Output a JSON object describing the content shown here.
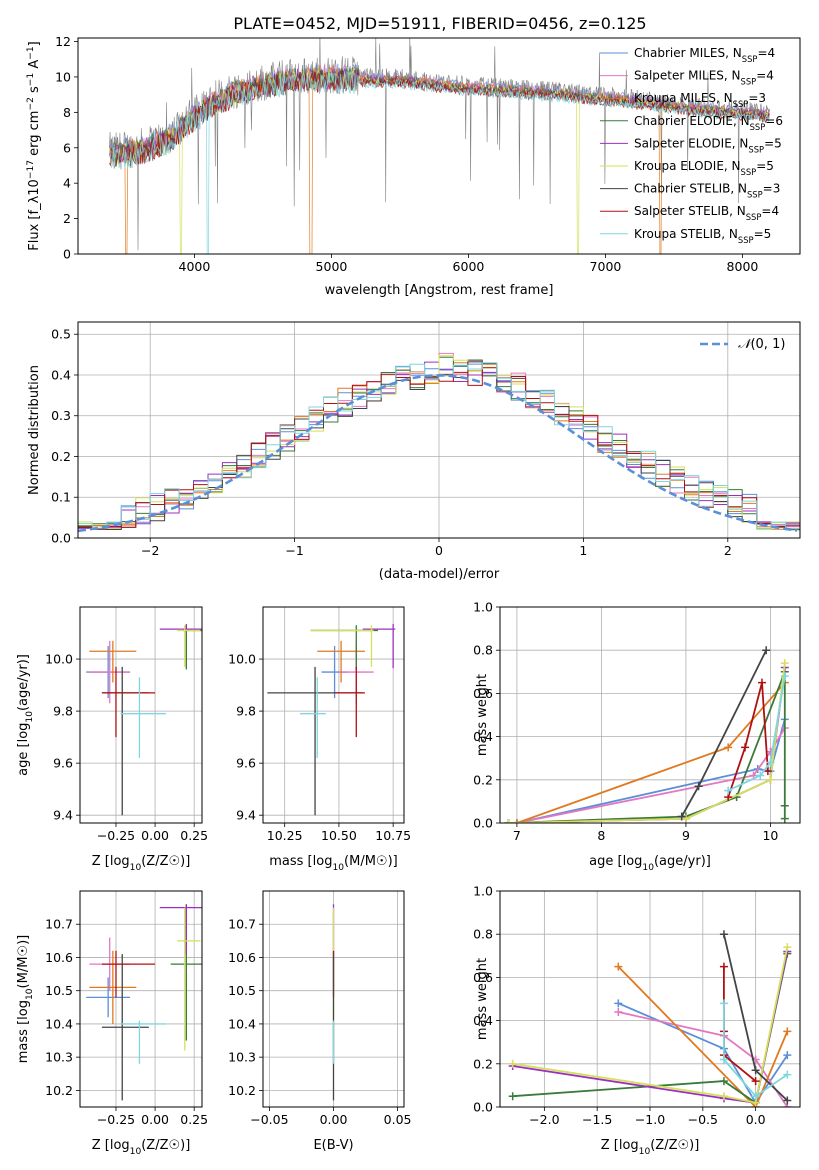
{
  "title": "PLATE=0452, MJD=51911, FIBERID=0456, z=0.125",
  "colors": {
    "chabrier_miles": "#5b8fd8",
    "salpeter_miles": "#e377c2",
    "kroupa_miles": "#e07a20",
    "chabrier_elodie": "#3a7a3a",
    "salpeter_elodie": "#9b30c0",
    "kroupa_elodie": "#d4e05a",
    "chabrier_stelib": "#444444",
    "salpeter_stelib": "#b01010",
    "kroupa_stelib": "#7fd6e0",
    "data": "#808080",
    "grid": "#b0b0b0"
  },
  "chart_data": [
    {
      "id": "spectrum",
      "type": "line",
      "xlabel": "wavelength [Angstrom, rest frame]",
      "ylabel": "Flux [f_λ10^-17 erg cm^-2 s^-1 A^-1]",
      "xlim": [
        3150,
        8420
      ],
      "ylim": [
        0,
        12.2
      ],
      "xticks": [
        "4000",
        "5000",
        "6000",
        "7000",
        "8000"
      ],
      "yticks": [
        "0",
        "2",
        "4",
        "6",
        "8",
        "10",
        "12"
      ],
      "legend": [
        "Chabrier MILES, N_SSP=4",
        "Salpeter MILES, N_SSP=4",
        "Kroupa MILES, N_SSP=3",
        "Chabrier ELODIE, N_SSP=6",
        "Salpeter ELODIE, N_SSP=5",
        "Kroupa ELODIE, N_SSP=5",
        "Chabrier STELIB, N_SSP=3",
        "Salpeter STELIB, N_SSP=4",
        "Kroupa STELIB, N_SSP=5"
      ],
      "legend_placement": "upper-right",
      "grid": false,
      "continuum": {
        "x": [
          3400,
          3600,
          3800,
          3950,
          4100,
          4300,
          4500,
          4700,
          4900,
          5100,
          5300,
          5500,
          5700,
          5900,
          6100,
          6300,
          6500,
          6700,
          6900,
          7100,
          7300,
          7500,
          7700,
          7900,
          8100,
          8200
        ],
        "y": [
          5.8,
          6.0,
          6.6,
          7.6,
          8.5,
          9.3,
          9.7,
          10.0,
          10.1,
          10.1,
          10.0,
          10.0,
          9.8,
          9.6,
          9.5,
          9.4,
          9.3,
          9.2,
          9.0,
          8.9,
          8.7,
          8.5,
          8.3,
          8.2,
          8.1,
          8.0
        ]
      },
      "model_gaps": [
        {
          "series": "Kroupa MILES",
          "x": [
            3500,
            4850,
            7400
          ]
        },
        {
          "series": "Kroupa ELODIE",
          "x": [
            3900,
            6800
          ]
        },
        {
          "series": "Kroupa STELIB",
          "x": [
            4100
          ]
        }
      ]
    },
    {
      "id": "residuals",
      "type": "line",
      "subtype": "step-histogram",
      "xlabel": "(data-model)/error",
      "ylabel": "Normed distribution",
      "xlim": [
        -2.5,
        2.5
      ],
      "ylim": [
        0,
        0.53
      ],
      "xticks": [
        "−2",
        "−1",
        "0",
        "1",
        "2"
      ],
      "yticks": [
        "0.0",
        "0.1",
        "0.2",
        "0.3",
        "0.4",
        "0.5"
      ],
      "grid": true,
      "reference": {
        "name": "N(0,1)",
        "style": "dashed",
        "mean": 0,
        "sigma": 1
      },
      "legend_placement": "upper-right"
    },
    {
      "id": "age_vs_Z",
      "type": "scatter",
      "subtype": "errorbar",
      "xlabel": "Z [log10(Z/Z☉)]",
      "ylabel": "age [log10(age/yr)]",
      "xlim": [
        -0.48,
        0.3
      ],
      "ylim": [
        9.37,
        10.2
      ],
      "xticks": [
        "−0.25",
        "0.00",
        "0.25"
      ],
      "yticks": [
        "9.4",
        "9.6",
        "9.8",
        "10.0"
      ],
      "grid": true,
      "points": [
        {
          "series": "Chabrier MILES",
          "x": -0.3,
          "xerr": [
            0.14,
            0.14
          ],
          "y": 9.95,
          "yerr": [
            0.1,
            0.1
          ]
        },
        {
          "series": "Salpeter MILES",
          "x": -0.29,
          "xerr": [
            0.13,
            0.13
          ],
          "y": 9.95,
          "yerr": [
            0.12,
            0.12
          ]
        },
        {
          "series": "Kroupa MILES",
          "x": -0.27,
          "xerr": [
            0.15,
            0.15
          ],
          "y": 10.03,
          "yerr": [
            0.12,
            0.04
          ]
        },
        {
          "series": "Chabrier ELODIE",
          "x": 0.2,
          "xerr": [
            0.02,
            0.1
          ],
          "y": 10.11,
          "yerr": [
            0.15,
            0.02
          ]
        },
        {
          "series": "Salpeter ELODIE",
          "x": 0.2,
          "xerr": [
            0.17,
            0.1
          ],
          "y": 10.115,
          "yerr": [
            0.01,
            0.02
          ]
        },
        {
          "series": "Kroupa ELODIE",
          "x": 0.19,
          "xerr": [
            0.05,
            0.1
          ],
          "y": 10.11,
          "yerr": [
            0.14,
            0.02
          ]
        },
        {
          "series": "Chabrier STELIB",
          "x": -0.21,
          "xerr": [
            0.13,
            0.17
          ],
          "y": 9.87,
          "yerr": [
            0.47,
            0.1
          ]
        },
        {
          "series": "Salpeter STELIB",
          "x": -0.25,
          "xerr": [
            0.09,
            0.25
          ],
          "y": 9.87,
          "yerr": [
            0.17,
            0.1
          ]
        },
        {
          "series": "Kroupa STELIB",
          "x": -0.1,
          "xerr": [
            0.12,
            0.17
          ],
          "y": 9.79,
          "yerr": [
            0.17,
            0.14
          ]
        }
      ]
    },
    {
      "id": "age_vs_mass",
      "type": "scatter",
      "subtype": "errorbar",
      "xlabel": "mass [log10(M/M☉)]",
      "ylabel": "",
      "xlim": [
        10.15,
        10.8
      ],
      "ylim": [
        9.37,
        10.2
      ],
      "xticks": [
        "10.25",
        "10.50",
        "10.75"
      ],
      "yticks": [
        "9.4",
        "9.6",
        "9.8",
        "10.0"
      ],
      "grid": true,
      "points": [
        {
          "series": "Chabrier MILES",
          "x": 10.48,
          "xerr": [
            0.06,
            0.06
          ],
          "y": 9.95,
          "yerr": [
            0.1,
            0.1
          ]
        },
        {
          "series": "Salpeter MILES",
          "x": 10.58,
          "xerr": [
            0.08,
            0.08
          ],
          "y": 9.95,
          "yerr": [
            0.12,
            0.12
          ]
        },
        {
          "series": "Kroupa MILES",
          "x": 10.51,
          "xerr": [
            0.11,
            0.11
          ],
          "y": 10.03,
          "yerr": [
            0.12,
            0.04
          ]
        },
        {
          "series": "Chabrier ELODIE",
          "x": 10.58,
          "xerr": [
            0.21,
            0.1
          ],
          "y": 10.11,
          "yerr": [
            0.15,
            0.02
          ]
        },
        {
          "series": "Salpeter ELODIE",
          "x": 10.75,
          "xerr": [
            0.14,
            0.01
          ],
          "y": 10.115,
          "yerr": [
            0.15,
            0.02
          ]
        },
        {
          "series": "Kroupa ELODIE",
          "x": 10.65,
          "xerr": [
            0.28,
            0.01
          ],
          "y": 10.11,
          "yerr": [
            0.14,
            0.02
          ]
        },
        {
          "series": "Chabrier STELIB",
          "x": 10.39,
          "xerr": [
            0.22,
            0.22
          ],
          "y": 9.87,
          "yerr": [
            0.47,
            0.1
          ]
        },
        {
          "series": "Salpeter STELIB",
          "x": 10.58,
          "xerr": [
            0.1,
            0.04
          ],
          "y": 9.87,
          "yerr": [
            0.17,
            0.1
          ]
        },
        {
          "series": "Kroupa STELIB",
          "x": 10.4,
          "xerr": [
            0.08,
            0.04
          ],
          "y": 9.79,
          "yerr": [
            0.17,
            0.14
          ]
        }
      ]
    },
    {
      "id": "weight_vs_age",
      "type": "line",
      "xlabel": "age [log10(age/yr)]",
      "ylabel": "mass weight",
      "xlim": [
        6.8,
        10.35
      ],
      "ylim": [
        0,
        1.0
      ],
      "xticks": [
        "7",
        "8",
        "9",
        "10"
      ],
      "yticks": [
        "0.0",
        "0.2",
        "0.4",
        "0.6",
        "0.8",
        "1.0"
      ],
      "grid": true,
      "series": [
        {
          "series": "Chabrier MILES",
          "x": [
            7.0,
            9.85,
            10.0,
            10.17
          ],
          "y": [
            0.0,
            0.25,
            0.24,
            0.48
          ]
        },
        {
          "series": "Salpeter MILES",
          "x": [
            7.0,
            9.8,
            10.0,
            10.17
          ],
          "y": [
            0.0,
            0.22,
            0.33,
            0.44
          ]
        },
        {
          "series": "Kroupa MILES",
          "x": [
            7.0,
            9.5,
            10.17
          ],
          "y": [
            0.0,
            0.35,
            0.65
          ]
        },
        {
          "series": "Chabrier ELODIE",
          "x": [
            6.9,
            9.0,
            9.6,
            10.17,
            10.17,
            10.17
          ],
          "y": [
            0.0,
            0.03,
            0.12,
            0.7,
            0.08,
            0.02
          ]
        },
        {
          "series": "Salpeter ELODIE",
          "x": [
            6.9,
            9.0,
            10.0,
            10.17
          ],
          "y": [
            0.0,
            0.02,
            0.2,
            0.72
          ]
        },
        {
          "series": "Kroupa ELODIE",
          "x": [
            6.9,
            9.0,
            10.0,
            10.17
          ],
          "y": [
            0.0,
            0.02,
            0.2,
            0.74
          ]
        },
        {
          "series": "Chabrier STELIB",
          "x": [
            8.95,
            9.15,
            9.95
          ],
          "y": [
            0.03,
            0.17,
            0.8
          ]
        },
        {
          "series": "Salpeter STELIB",
          "x": [
            9.5,
            9.7,
            9.9,
            9.97
          ],
          "y": [
            0.12,
            0.35,
            0.65,
            0.24
          ]
        },
        {
          "series": "Kroupa STELIB",
          "x": [
            9.5,
            9.88,
            10.0,
            10.17
          ],
          "y": [
            0.15,
            0.22,
            0.28,
            0.68
          ]
        }
      ]
    },
    {
      "id": "mass_vs_Z",
      "type": "scatter",
      "subtype": "errorbar",
      "xlabel": "Z [log10(Z/Z☉)]",
      "ylabel": "mass [log10(M/M☉)]",
      "xlim": [
        -0.48,
        0.3
      ],
      "ylim": [
        10.15,
        10.8
      ],
      "xticks": [
        "−0.25",
        "0.00",
        "0.25"
      ],
      "yticks": [
        "10.2",
        "10.3",
        "10.4",
        "10.5",
        "10.6",
        "10.7"
      ],
      "grid": true,
      "points": [
        {
          "series": "Chabrier MILES",
          "x": -0.3,
          "xerr": [
            0.14,
            0.14
          ],
          "y": 10.48,
          "yerr": [
            0.06,
            0.06
          ]
        },
        {
          "series": "Salpeter MILES",
          "x": -0.29,
          "xerr": [
            0.13,
            0.13
          ],
          "y": 10.58,
          "yerr": [
            0.08,
            0.08
          ]
        },
        {
          "series": "Kroupa MILES",
          "x": -0.27,
          "xerr": [
            0.15,
            0.15
          ],
          "y": 10.51,
          "yerr": [
            0.11,
            0.11
          ]
        },
        {
          "series": "Chabrier ELODIE",
          "x": 0.2,
          "xerr": [
            0.1,
            0.1
          ],
          "y": 10.58,
          "yerr": [
            0.23,
            0.18
          ]
        },
        {
          "series": "Salpeter ELODIE",
          "x": 0.2,
          "xerr": [
            0.17,
            0.1
          ],
          "y": 10.75,
          "yerr": [
            0.14,
            0.01
          ]
        },
        {
          "series": "Kroupa ELODIE",
          "x": 0.19,
          "xerr": [
            0.05,
            0.1
          ],
          "y": 10.65,
          "yerr": [
            0.33,
            0.1
          ]
        },
        {
          "series": "Chabrier STELIB",
          "x": -0.21,
          "xerr": [
            0.13,
            0.17
          ],
          "y": 10.39,
          "yerr": [
            0.22,
            0.22
          ]
        },
        {
          "series": "Salpeter STELIB",
          "x": -0.25,
          "xerr": [
            0.09,
            0.25
          ],
          "y": 10.58,
          "yerr": [
            0.1,
            0.04
          ]
        },
        {
          "series": "Kroupa STELIB",
          "x": -0.1,
          "xerr": [
            0.12,
            0.17
          ],
          "y": 10.4,
          "yerr": [
            0.12,
            0.01
          ]
        }
      ]
    },
    {
      "id": "mass_vs_ebv",
      "type": "scatter",
      "subtype": "errorbar",
      "xlabel": "E(B-V)",
      "ylabel": "",
      "xlim": [
        -0.055,
        0.055
      ],
      "ylim": [
        10.15,
        10.8
      ],
      "xticks": [
        "−0.05",
        "0.00",
        "0.05"
      ],
      "yticks": [
        "10.2",
        "10.3",
        "10.4",
        "10.5",
        "10.6",
        "10.7"
      ],
      "grid": true,
      "points": [
        {
          "series": "Salpeter ELODIE",
          "x": 0,
          "y": 10.75,
          "yerr": [
            0.14,
            0.01
          ]
        },
        {
          "series": "Kroupa ELODIE",
          "x": 0,
          "y": 10.65,
          "yerr": [
            0.33,
            0.1
          ]
        },
        {
          "series": "Salpeter STELIB",
          "x": 0,
          "y": 10.58,
          "yerr": [
            0.1,
            0.04
          ]
        },
        {
          "series": "Chabrier STELIB",
          "x": 0,
          "y": 10.39,
          "yerr": [
            0.22,
            0.22
          ]
        },
        {
          "series": "Kroupa STELIB",
          "x": 0,
          "y": 10.4,
          "yerr": [
            0.12,
            0.01
          ]
        }
      ]
    },
    {
      "id": "weight_vs_Z",
      "type": "line",
      "xlabel": "Z [log10(Z/Z☉)]",
      "ylabel": "mass weight",
      "xlim": [
        -2.42,
        0.42
      ],
      "ylim": [
        0,
        1.0
      ],
      "xticks": [
        "−2.0",
        "−1.5",
        "−1.0",
        "−0.5",
        "0.0"
      ],
      "yticks": [
        "0.0",
        "0.2",
        "0.4",
        "0.6",
        "0.8",
        "1.0"
      ],
      "grid": true,
      "series": [
        {
          "series": "Chabrier MILES",
          "x": [
            -1.3,
            -0.3,
            0.0,
            0.3
          ],
          "y": [
            0.48,
            0.27,
            0.02,
            0.24
          ]
        },
        {
          "series": "Salpeter MILES",
          "x": [
            -1.3,
            -0.3,
            0.0,
            0.3
          ],
          "y": [
            0.44,
            0.33,
            0.22,
            0.0
          ]
        },
        {
          "series": "Kroupa MILES",
          "x": [
            -1.3,
            0.0,
            0.3
          ],
          "y": [
            0.65,
            0.0,
            0.35
          ]
        },
        {
          "series": "Chabrier ELODIE",
          "x": [
            -2.3,
            -0.3,
            0.0,
            0.3
          ],
          "y": [
            0.05,
            0.12,
            0.02,
            0.71
          ]
        },
        {
          "series": "Salpeter ELODIE",
          "x": [
            -2.3,
            -0.3,
            0.0,
            0.3
          ],
          "y": [
            0.19,
            0.04,
            0.02,
            0.72
          ]
        },
        {
          "series": "Kroupa ELODIE",
          "x": [
            -2.3,
            -0.3,
            0.0,
            0.3
          ],
          "y": [
            0.2,
            0.05,
            0.02,
            0.74
          ]
        },
        {
          "series": "Chabrier STELIB",
          "x": [
            -0.3,
            0.0,
            0.3
          ],
          "y": [
            0.8,
            0.17,
            0.03
          ]
        },
        {
          "series": "Salpeter STELIB",
          "x": [
            -0.3,
            -0.3,
            -0.3,
            0.0
          ],
          "y": [
            0.65,
            0.35,
            0.24,
            0.12
          ]
        },
        {
          "series": "Kroupa STELIB",
          "x": [
            -0.3,
            -0.3,
            0.0,
            0.3
          ],
          "y": [
            0.48,
            0.22,
            0.05,
            0.15
          ]
        }
      ]
    }
  ]
}
